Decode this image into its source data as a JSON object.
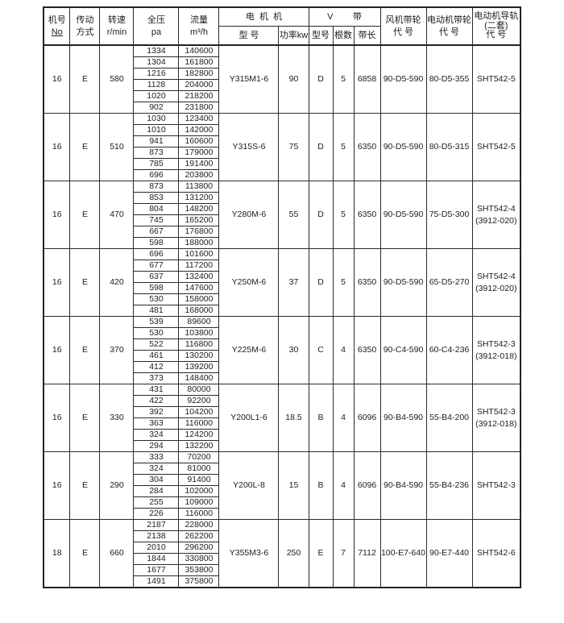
{
  "table": {
    "columns": {
      "machine_no": {
        "line1": "机号",
        "line2": "No"
      },
      "drive": {
        "line1": "传动",
        "line2": "方式"
      },
      "speed": {
        "line1": "转速",
        "line2": "r/min"
      },
      "pressure": {
        "line1": "全压",
        "line2": "pa"
      },
      "flow": {
        "line1": "流量",
        "line2": "m³/h"
      },
      "motor_group": "电  机  机",
      "motor_model": "型 号",
      "motor_power": "功率kw",
      "vbelt_group": "V        带",
      "vbelt_model": "型号",
      "vbelt_count": "根数",
      "vbelt_length": "带长",
      "fan_pulley": {
        "line1": "风机带轮",
        "line2": "代 号"
      },
      "motor_pulley": {
        "line1": "电动机带轮",
        "line2": "代 号"
      },
      "motor_rail": {
        "line1": "电动机导轨",
        "line2": "(二套)",
        "line3": "代 号"
      }
    },
    "blocks": [
      {
        "machine_no": "16",
        "drive": "E",
        "speed": "580",
        "rows": [
          [
            "1334",
            "140600"
          ],
          [
            "1304",
            "161800"
          ],
          [
            "1216",
            "182800"
          ],
          [
            "1128",
            "204000"
          ],
          [
            "1020",
            "218200"
          ],
          [
            "902",
            "231800"
          ]
        ],
        "motor_model": "Y315M1-6",
        "motor_power": "90",
        "belt_model": "D",
        "belt_count": "5",
        "belt_length": "6858",
        "fan_pulley": "90-D5-590",
        "motor_pulley": "80-D5-355",
        "rail_code": [
          "SHT542-5"
        ]
      },
      {
        "machine_no": "16",
        "drive": "E",
        "speed": "510",
        "rows": [
          [
            "1030",
            "123400"
          ],
          [
            "1010",
            "142000"
          ],
          [
            "941",
            "160600"
          ],
          [
            "873",
            "179000"
          ],
          [
            "785",
            "191400"
          ],
          [
            "696",
            "203800"
          ]
        ],
        "motor_model": "Y315S-6",
        "motor_power": "75",
        "belt_model": "D",
        "belt_count": "5",
        "belt_length": "6350",
        "fan_pulley": "90-D5-590",
        "motor_pulley": "80-D5-315",
        "rail_code": [
          "SHT542-5"
        ]
      },
      {
        "machine_no": "16",
        "drive": "E",
        "speed": "470",
        "rows": [
          [
            "873",
            "113800"
          ],
          [
            "853",
            "131200"
          ],
          [
            "804",
            "148200"
          ],
          [
            "745",
            "165200"
          ],
          [
            "667",
            "176800"
          ],
          [
            "598",
            "188000"
          ]
        ],
        "motor_model": "Y280M-6",
        "motor_power": "55",
        "belt_model": "D",
        "belt_count": "5",
        "belt_length": "6350",
        "fan_pulley": "90-D5-590",
        "motor_pulley": "75-D5-300",
        "rail_code": [
          "SHT542-4",
          "(3912-020)"
        ]
      },
      {
        "machine_no": "16",
        "drive": "E",
        "speed": "420",
        "rows": [
          [
            "696",
            "101600"
          ],
          [
            "677",
            "117200"
          ],
          [
            "637",
            "132400"
          ],
          [
            "598",
            "147600"
          ],
          [
            "530",
            "158000"
          ],
          [
            "481",
            "168000"
          ]
        ],
        "motor_model": "Y250M-6",
        "motor_power": "37",
        "belt_model": "D",
        "belt_count": "5",
        "belt_length": "6350",
        "fan_pulley": "90-D5-590",
        "motor_pulley": "65-D5-270",
        "rail_code": [
          "SHT542-4",
          "(3912-020)"
        ]
      },
      {
        "machine_no": "16",
        "drive": "E",
        "speed": "370",
        "rows": [
          [
            "539",
            "89600"
          ],
          [
            "530",
            "103800"
          ],
          [
            "522",
            "116800"
          ],
          [
            "461",
            "130200"
          ],
          [
            "412",
            "139200"
          ],
          [
            "373",
            "148400"
          ]
        ],
        "motor_model": "Y225M-6",
        "motor_power": "30",
        "belt_model": "C",
        "belt_count": "4",
        "belt_length": "6350",
        "fan_pulley": "90-C4-590",
        "motor_pulley": "60-C4-236",
        "rail_code": [
          "SHT542-3",
          "(3912-018)"
        ]
      },
      {
        "machine_no": "16",
        "drive": "E",
        "speed": "330",
        "rows": [
          [
            "431",
            "80000"
          ],
          [
            "422",
            "92200"
          ],
          [
            "392",
            "104200"
          ],
          [
            "363",
            "116000"
          ],
          [
            "324",
            "124200"
          ],
          [
            "294",
            "132200"
          ]
        ],
        "motor_model": "Y200L1-6",
        "motor_power": "18.5",
        "belt_model": "B",
        "belt_count": "4",
        "belt_length": "6096",
        "fan_pulley": "90-B4-590",
        "motor_pulley": "55-B4-200",
        "rail_code": [
          "SHT542-3",
          "(3912-018)"
        ]
      },
      {
        "machine_no": "16",
        "drive": "E",
        "speed": "290",
        "rows": [
          [
            "333",
            "70200"
          ],
          [
            "324",
            "81000"
          ],
          [
            "304",
            "91400"
          ],
          [
            "284",
            "102000"
          ],
          [
            "255",
            "109000"
          ],
          [
            "226",
            "116000"
          ]
        ],
        "motor_model": "Y200L-8",
        "motor_power": "15",
        "belt_model": "B",
        "belt_count": "4",
        "belt_length": "6096",
        "fan_pulley": "90-B4-590",
        "motor_pulley": "55-B4-236",
        "rail_code": [
          "SHT542-3"
        ]
      },
      {
        "machine_no": "18",
        "drive": "E",
        "speed": "660",
        "rows": [
          [
            "2187",
            "228000"
          ],
          [
            "2138",
            "262200"
          ],
          [
            "2010",
            "296200"
          ],
          [
            "1844",
            "330800"
          ],
          [
            "1677",
            "353800"
          ],
          [
            "1491",
            "375800"
          ]
        ],
        "motor_model": "Y355M3-6",
        "motor_power": "250",
        "belt_model": "E",
        "belt_count": "7",
        "belt_length": "7112",
        "fan_pulley": "100-E7-640",
        "motor_pulley": "90-E7-440",
        "rail_code": [
          "SHT542-6"
        ]
      }
    ]
  }
}
